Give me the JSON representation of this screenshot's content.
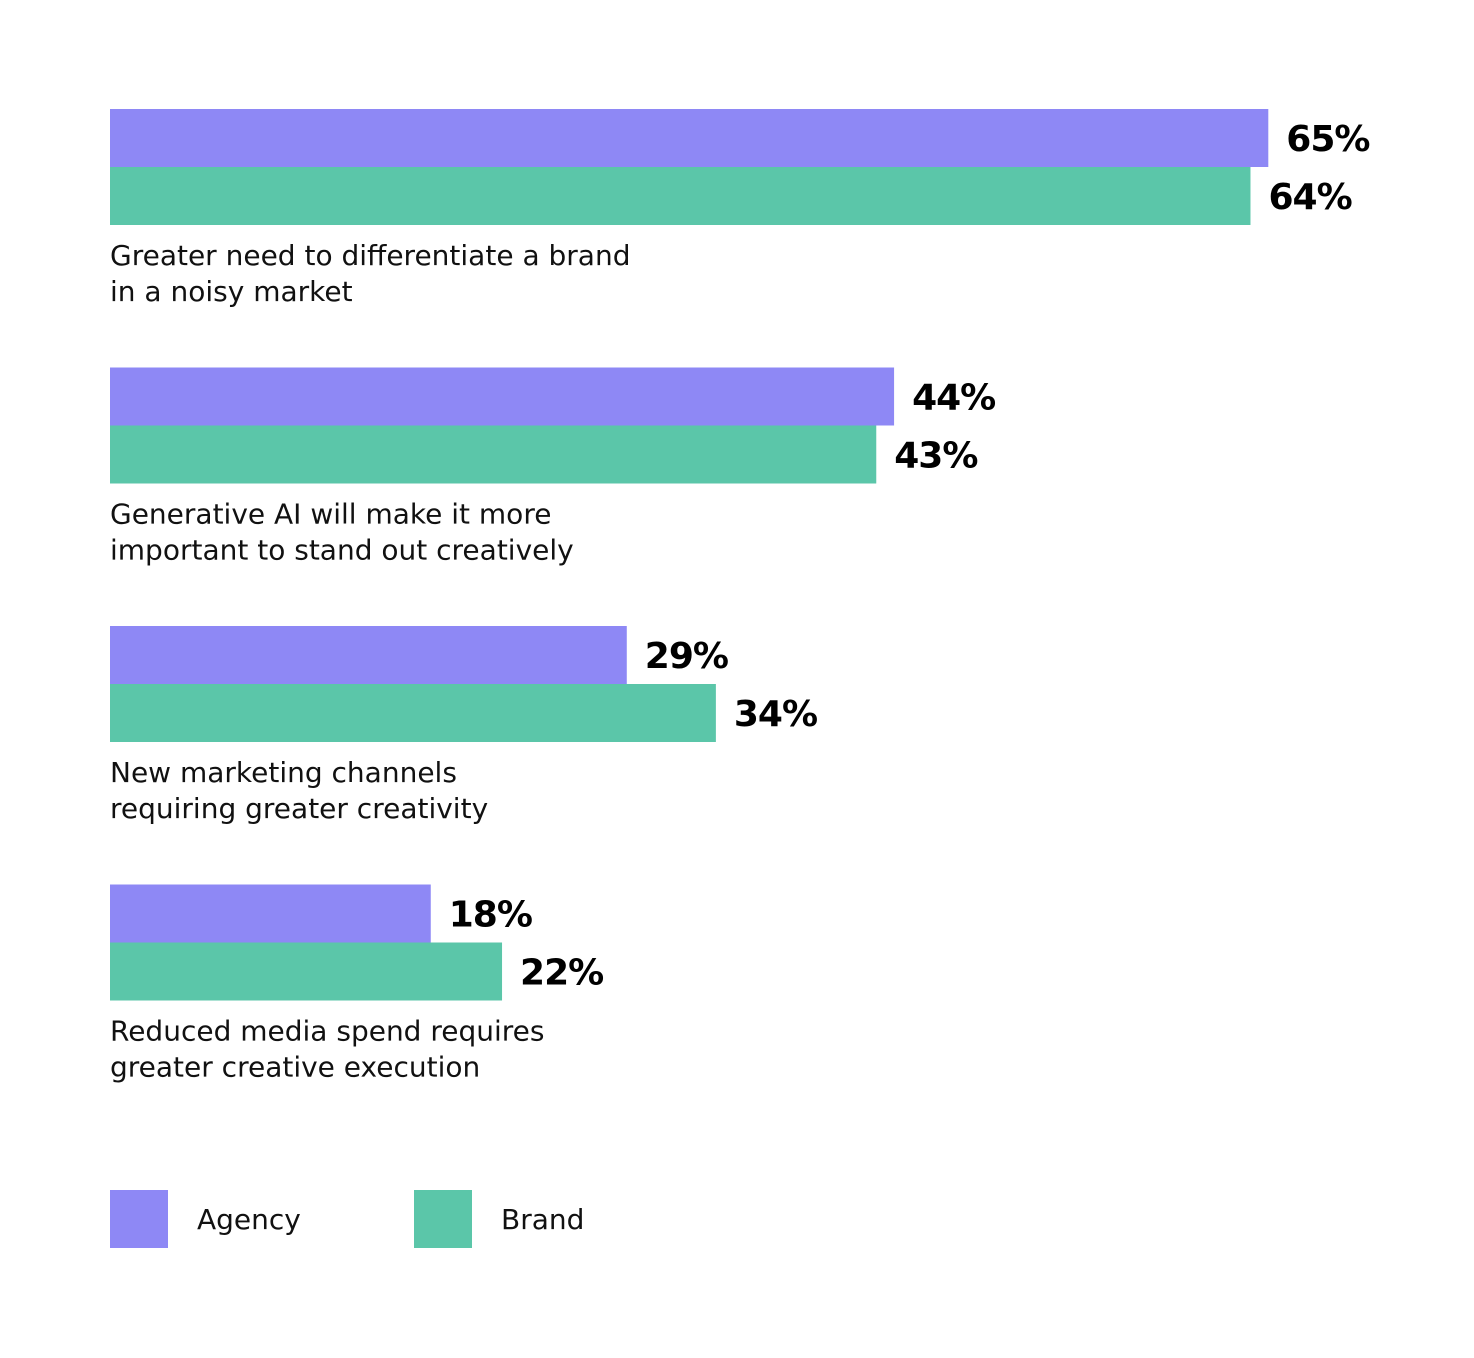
{
  "chart_data": {
    "type": "bar",
    "orientation": "horizontal",
    "categories": [
      [
        "Greater need to differentiate a brand",
        "in a noisy market"
      ],
      [
        "Generative AI will make it more",
        "important to stand out creatively"
      ],
      [
        "New marketing channels",
        "requiring greater creativity"
      ],
      [
        "Reduced media spend requires",
        "greater creative execution"
      ]
    ],
    "series": [
      {
        "name": "Agency",
        "color": "#8e88f5",
        "values": [
          65,
          44,
          29,
          18
        ],
        "labels": [
          "65%",
          "44%",
          "29%",
          "18%"
        ]
      },
      {
        "name": "Brand",
        "color": "#5bc6a9",
        "values": [
          64,
          43,
          34,
          22
        ],
        "labels": [
          "64%",
          "43%",
          "34%",
          "22%"
        ]
      }
    ],
    "unit": "%",
    "grid": false,
    "legend_position": "bottom-left"
  }
}
